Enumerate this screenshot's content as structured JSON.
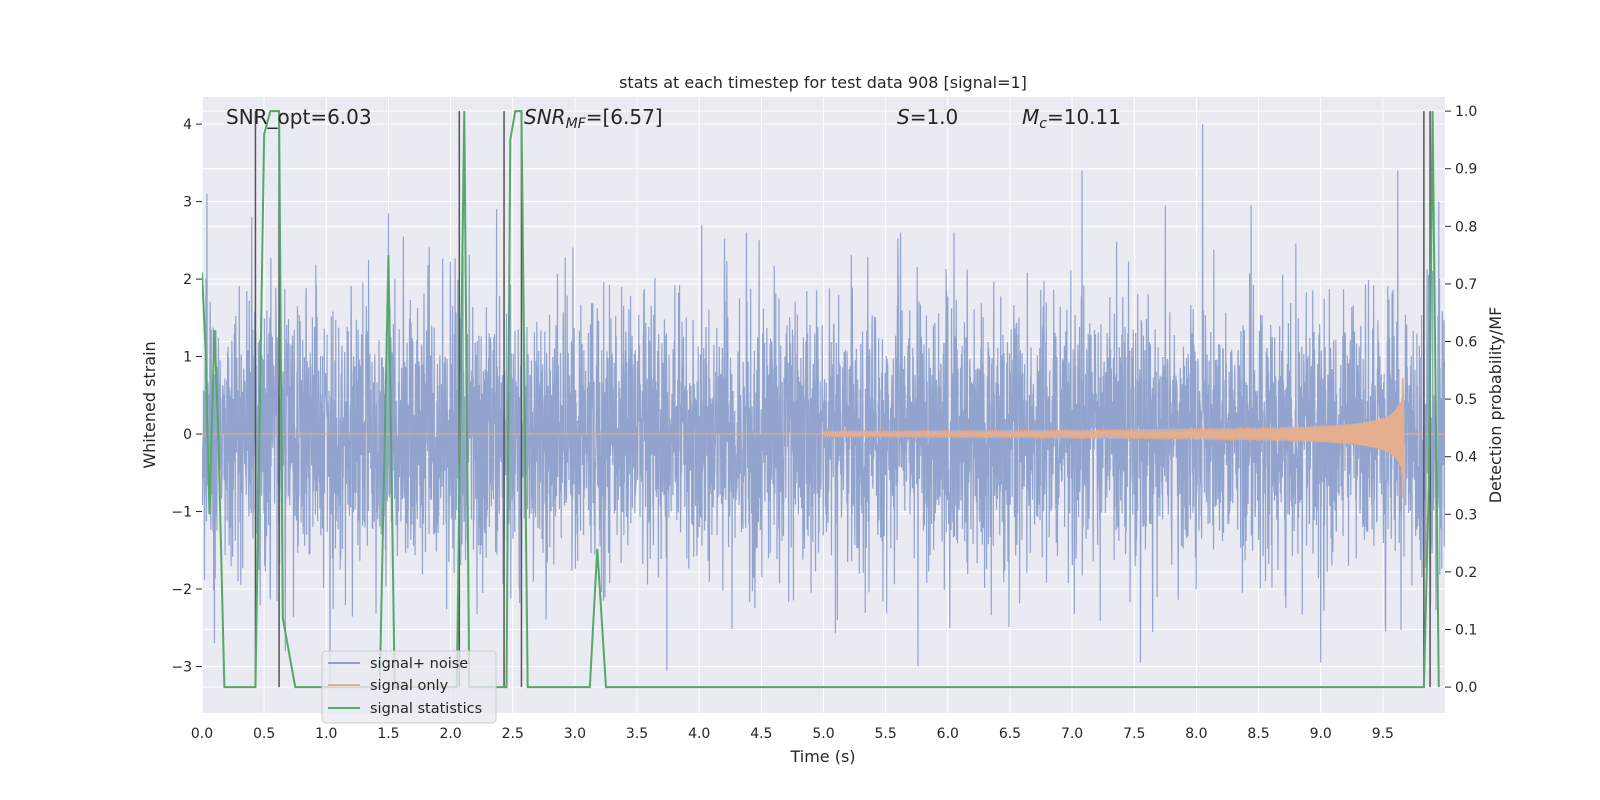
{
  "chart_data": {
    "type": "line",
    "title": "stats at each timestep for test data 908 [signal=1]",
    "xlabel": "Time (s)",
    "ylabel_left": "Whitened strain",
    "ylabel_right": "Detection probability/MF",
    "xlim": [
      0.0,
      10.0
    ],
    "ylim_left": [
      -3.6,
      4.35
    ],
    "ylim_right": [
      -0.045,
      1.0245
    ],
    "x_ticks": [
      "0.0",
      "0.5",
      "1.0",
      "1.5",
      "2.0",
      "2.5",
      "3.0",
      "3.5",
      "4.0",
      "4.5",
      "5.0",
      "5.5",
      "6.0",
      "6.5",
      "7.0",
      "7.5",
      "8.0",
      "8.5",
      "9.0",
      "9.5"
    ],
    "x_tick_values": [
      0.0,
      0.5,
      1.0,
      1.5,
      2.0,
      2.5,
      3.0,
      3.5,
      4.0,
      4.5,
      5.0,
      5.5,
      6.0,
      6.5,
      7.0,
      7.5,
      8.0,
      8.5,
      9.0,
      9.5
    ],
    "y_ticks_left": [
      "−3",
      "−2",
      "−1",
      "0",
      "1",
      "2",
      "3",
      "4"
    ],
    "y_tick_values_left": [
      -3,
      -2,
      -1,
      0,
      1,
      2,
      3,
      4
    ],
    "y_ticks_right": [
      "0.0",
      "0.1",
      "0.2",
      "0.3",
      "0.4",
      "0.5",
      "0.6",
      "0.7",
      "0.8",
      "0.9",
      "1.0"
    ],
    "y_tick_values_right": [
      0.0,
      0.1,
      0.2,
      0.3,
      0.4,
      0.5,
      0.6,
      0.7,
      0.8,
      0.9,
      1.0
    ],
    "grid": true,
    "legend_position": "lower-left",
    "annotations": {
      "snr_opt": "SNR_opt=6.03",
      "snr_mf": "SNR",
      "snr_mf_sub": "MF",
      "snr_mf_value": "=[6.57]",
      "s_label": "S",
      "s_value": "=1.0",
      "mc_label": "M",
      "mc_sub": "c",
      "mc_value": "=10.11"
    },
    "series": [
      {
        "name": "signal+ noise",
        "color": "#8da0cb",
        "description_kind": "noise",
        "noise_std": 0.85,
        "peak_outliers": [
          [
            0.04,
            3.1
          ],
          [
            0.4,
            2.8
          ],
          [
            1.03,
            2.6
          ],
          [
            1.5,
            2.85
          ],
          [
            2.1,
            2.3
          ],
          [
            2.37,
            2.9
          ],
          [
            4.02,
            2.7
          ],
          [
            4.38,
            2.6
          ],
          [
            5.62,
            2.6
          ],
          [
            6.05,
            2.6
          ],
          [
            7.08,
            3.4
          ],
          [
            7.75,
            2.95
          ],
          [
            8.05,
            4.0
          ],
          [
            8.44,
            2.95
          ],
          [
            9.62,
            3.4
          ],
          [
            9.95,
            3.0
          ],
          [
            0.1,
            -2.7
          ],
          [
            0.67,
            -2.8
          ],
          [
            1.03,
            -3.2
          ],
          [
            3.74,
            -3.05
          ],
          [
            5.76,
            -3.0
          ],
          [
            7.55,
            -2.95
          ],
          [
            9.0,
            -2.95
          ]
        ],
        "sample_step": 0.002
      },
      {
        "name": "signal only",
        "color": "#e5ae8f",
        "description_kind": "chirp",
        "chirp_start": 5.0,
        "chirp_end": 9.67,
        "chirp_peak_amp": 0.72,
        "chirp_peak_neg": -0.82
      },
      {
        "name": "signal statistics",
        "color": "#55a868",
        "axis": "right",
        "x": [
          0.0,
          0.03,
          0.06,
          0.1,
          0.13,
          0.18,
          0.43,
          0.5,
          0.55,
          0.62,
          0.65,
          0.75,
          1.43,
          1.5,
          1.55,
          2.05,
          2.11,
          2.15,
          2.45,
          2.48,
          2.52,
          2.57,
          2.62,
          2.73,
          3.12,
          3.18,
          3.25,
          9.83,
          9.87,
          9.9,
          9.95
        ],
        "y": [
          0.72,
          0.58,
          0.3,
          0.62,
          0.45,
          0.0,
          0.0,
          0.96,
          1.0,
          1.0,
          0.12,
          0.0,
          0.0,
          0.75,
          0.0,
          0.0,
          1.0,
          0.0,
          0.0,
          0.95,
          1.0,
          1.0,
          0.0,
          0.0,
          0.0,
          0.24,
          0.0,
          0.0,
          0.35,
          1.0,
          0.0
        ]
      }
    ],
    "vertical_markers": [
      0.43,
      0.62,
      2.07,
      2.43,
      2.57,
      9.83,
      9.88
    ],
    "vertical_marker_color": "#555555",
    "vertical_marker_top": 1.0,
    "vertical_marker_bottom_values": [
      0.0,
      0.0,
      0.0,
      0.0,
      0.0,
      0.0,
      0.0
    ],
    "black_step_segments": [
      [
        0.55,
        0.62,
        1.0
      ],
      [
        2.52,
        2.57,
        1.0
      ]
    ]
  }
}
